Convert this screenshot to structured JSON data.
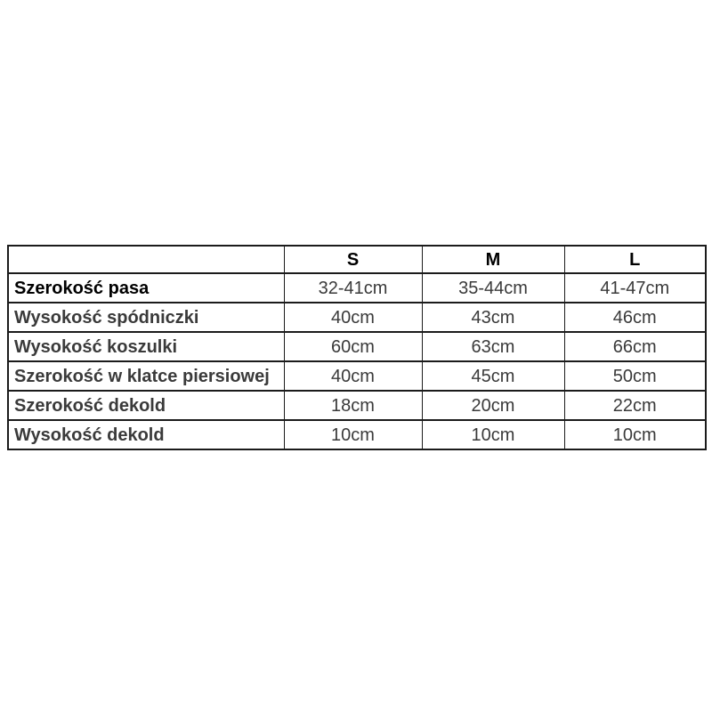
{
  "page": {
    "background": "#ffffff"
  },
  "colors": {
    "border": "#1b1b1b",
    "header_text": "#000000",
    "label_text": "#3a3a3a",
    "value_text": "#3a3a3a",
    "emphasis_label_text": "#000000"
  },
  "table": {
    "columns": [
      "",
      "S",
      "M",
      "L"
    ],
    "rows": [
      {
        "label": "Szerokość pasa",
        "values": [
          "32-41cm",
          "35-44cm",
          "41-47cm"
        ]
      },
      {
        "label": "Wysokość spódniczki",
        "values": [
          "40cm",
          "43cm",
          "46cm"
        ]
      },
      {
        "label": "Wysokość koszulki",
        "values": [
          "60cm",
          "63cm",
          "66cm"
        ]
      },
      {
        "label": "Szerokość w klatce piersiowej",
        "values": [
          "40cm",
          "45cm",
          "50cm"
        ]
      },
      {
        "label": "Szerokość dekold",
        "values": [
          "18cm",
          "20cm",
          "22cm"
        ]
      },
      {
        "label": "Wysokość dekold",
        "values": [
          "10cm",
          "10cm",
          "10cm"
        ]
      }
    ]
  },
  "chart_data": {
    "type": "table",
    "title": "",
    "columns": [
      "",
      "S",
      "M",
      "L"
    ],
    "rows": [
      [
        "Szerokość pasa",
        "32-41cm",
        "35-44cm",
        "41-47cm"
      ],
      [
        "Wysokość spódniczki",
        "40cm",
        "43cm",
        "46cm"
      ],
      [
        "Wysokość koszulki",
        "60cm",
        "63cm",
        "66cm"
      ],
      [
        "Szerokość w klatce piersiowej",
        "40cm",
        "45cm",
        "50cm"
      ],
      [
        "Szerokość dekold",
        "18cm",
        "20cm",
        "22cm"
      ],
      [
        "Wysokość dekold",
        "10cm",
        "10cm",
        "10cm"
      ]
    ],
    "layout": {
      "grid": true,
      "header_row_bold": true,
      "label_column_bold": true
    }
  }
}
